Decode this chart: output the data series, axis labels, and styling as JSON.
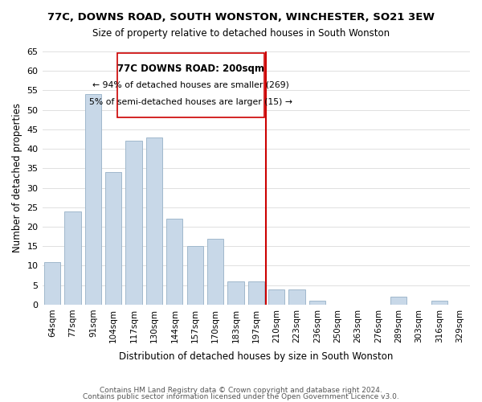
{
  "title": "77C, DOWNS ROAD, SOUTH WONSTON, WINCHESTER, SO21 3EW",
  "subtitle": "Size of property relative to detached houses in South Wonston",
  "xlabel": "Distribution of detached houses by size in South Wonston",
  "ylabel": "Number of detached properties",
  "bar_labels": [
    "64sqm",
    "77sqm",
    "91sqm",
    "104sqm",
    "117sqm",
    "130sqm",
    "144sqm",
    "157sqm",
    "170sqm",
    "183sqm",
    "197sqm",
    "210sqm",
    "223sqm",
    "236sqm",
    "250sqm",
    "263sqm",
    "276sqm",
    "289sqm",
    "303sqm",
    "316sqm",
    "329sqm"
  ],
  "bar_values": [
    11,
    24,
    54,
    34,
    42,
    43,
    22,
    15,
    17,
    6,
    6,
    4,
    4,
    1,
    0,
    0,
    0,
    2,
    0,
    1,
    0
  ],
  "bar_color": "#c8d8e8",
  "bar_edge_color": "#a0b8cc",
  "ylim": [
    0,
    65
  ],
  "yticks": [
    0,
    5,
    10,
    15,
    20,
    25,
    30,
    35,
    40,
    45,
    50,
    55,
    60,
    65
  ],
  "vline_x": 10.5,
  "vline_color": "#cc0000",
  "annotation_title": "77C DOWNS ROAD: 200sqm",
  "annotation_line1": "← 94% of detached houses are smaller (269)",
  "annotation_line2": "5% of semi-detached houses are larger (15) →",
  "annotation_box_color": "#ffffff",
  "annotation_box_edge": "#cc0000",
  "footer1": "Contains HM Land Registry data © Crown copyright and database right 2024.",
  "footer2": "Contains public sector information licensed under the Open Government Licence v3.0.",
  "background_color": "#ffffff",
  "grid_color": "#e0e0e0"
}
